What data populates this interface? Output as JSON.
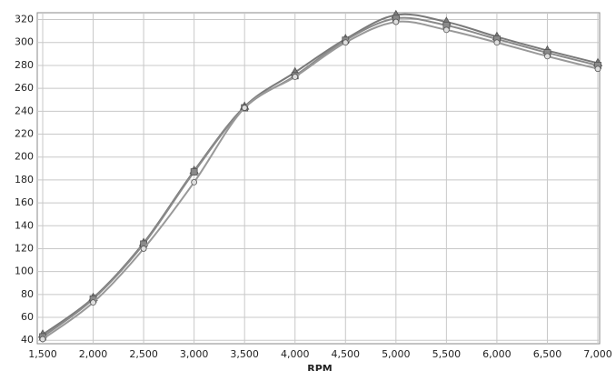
{
  "chart_data": {
    "type": "line",
    "x_label": "RPM",
    "x": [
      1500,
      2000,
      2500,
      3000,
      3500,
      4000,
      4500,
      5000,
      5500,
      6000,
      6500,
      7000
    ],
    "series": [
      {
        "color": "#7a7a7a",
        "marker": "triangle",
        "values": [
          45,
          77,
          125,
          188,
          244,
          274,
          303,
          324,
          318,
          305,
          293,
          282
        ]
      },
      {
        "color": "#8a8a8a",
        "marker": "square",
        "values": [
          43,
          76,
          124,
          187,
          243,
          271,
          302,
          321,
          315,
          303,
          291,
          280
        ]
      },
      {
        "color": "#999999",
        "marker": "circle",
        "values": [
          41,
          73,
          120,
          178,
          243,
          270,
          300,
          318,
          311,
          300,
          288,
          277
        ]
      }
    ],
    "xlim": [
      1500,
      7000
    ],
    "xticks": [
      {
        "value": 1500,
        "label": "1,500"
      },
      {
        "value": 2000,
        "label": "2,000"
      },
      {
        "value": 2500,
        "label": "2,500"
      },
      {
        "value": 3000,
        "label": "3,000"
      },
      {
        "value": 3500,
        "label": "3,500"
      },
      {
        "value": 4000,
        "label": "4,000"
      },
      {
        "value": 4500,
        "label": "4,500"
      },
      {
        "value": 5000,
        "label": "5,000"
      },
      {
        "value": 5500,
        "label": "5,500"
      },
      {
        "value": 6000,
        "label": "6,000"
      },
      {
        "value": 6500,
        "label": "6,500"
      },
      {
        "value": 7000,
        "label": "7,000"
      }
    ],
    "ylim": [
      37,
      326
    ],
    "yticks": [
      40,
      60,
      80,
      100,
      120,
      140,
      160,
      180,
      200,
      220,
      240,
      260,
      280,
      300,
      320
    ],
    "grid": true
  }
}
